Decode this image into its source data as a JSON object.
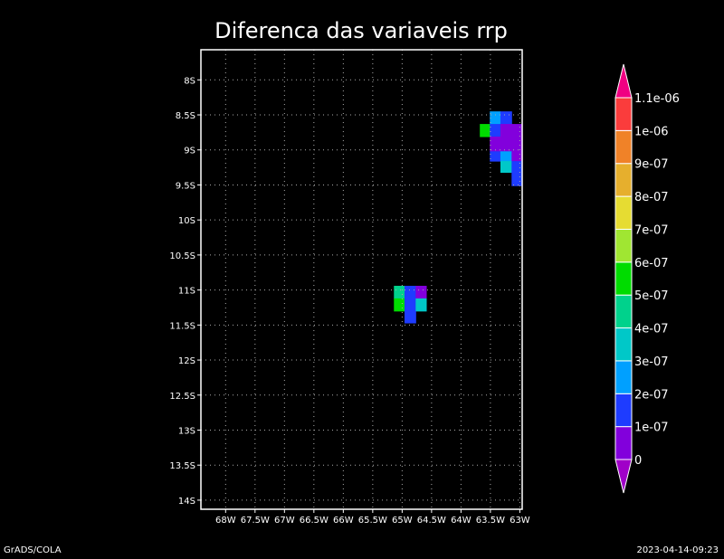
{
  "chart_data": {
    "type": "heatmap",
    "title": "Diferenca das variaveis rrp",
    "xlabel": "",
    "ylabel": "",
    "xlim": [
      -68.42,
      -62.96
    ],
    "ylim": [
      -14.13,
      -7.57
    ],
    "grid": true,
    "x_ticks": [
      -68,
      -67.5,
      -67,
      -66.5,
      -66,
      -65.5,
      -65,
      -64.5,
      -64,
      -63.5,
      -63
    ],
    "x_tick_labels": [
      "68W",
      "67.5W",
      "67W",
      "66.5W",
      "66W",
      "65.5W",
      "65W",
      "64.5W",
      "64W",
      "63.5W",
      "63W"
    ],
    "y_ticks": [
      -8,
      -8.5,
      -9,
      -9.5,
      -10,
      -10.5,
      -11,
      -11.5,
      -12,
      -12.5,
      -13,
      -13.5,
      -14
    ],
    "y_tick_labels": [
      "8S",
      "8.5S",
      "9S",
      "9.5S",
      "10S",
      "10.5S",
      "11S",
      "11.5S",
      "12S",
      "12.5S",
      "13S",
      "13.5S",
      "14S"
    ],
    "cells_note_units": "value",
    "cells": [
      [
        -63.68,
        -63.51,
        -8.63,
        -8.81,
        5.5e-07
      ],
      [
        -63.51,
        -63.33,
        -8.45,
        -8.63,
        2.5e-07
      ],
      [
        -63.33,
        -63.14,
        -8.45,
        -8.63,
        1.5e-07
      ],
      [
        -63.51,
        -63.33,
        -8.63,
        -8.81,
        1.5e-07
      ],
      [
        -63.33,
        -63.14,
        -8.63,
        -8.81,
        5e-08
      ],
      [
        -63.14,
        -62.96,
        -8.63,
        -8.81,
        5e-08
      ],
      [
        -63.51,
        -63.33,
        -8.81,
        -9.02,
        5e-08
      ],
      [
        -63.33,
        -63.14,
        -8.81,
        -9.02,
        5e-08
      ],
      [
        -63.14,
        -62.96,
        -8.81,
        -9.02,
        5e-08
      ],
      [
        -63.51,
        -63.33,
        -9.02,
        -9.16,
        1.5e-07
      ],
      [
        -63.33,
        -63.14,
        -9.02,
        -9.16,
        2.5e-07
      ],
      [
        -63.14,
        -62.96,
        -9.02,
        -9.16,
        5e-08
      ],
      [
        -63.33,
        -63.14,
        -9.16,
        -9.32,
        3.5e-07
      ],
      [
        -63.14,
        -62.96,
        -9.16,
        -9.32,
        1.5e-07
      ],
      [
        -63.14,
        -62.96,
        -9.32,
        -9.51,
        1e-07
      ],
      [
        -65.14,
        -64.96,
        -10.94,
        -11.12,
        4e-07
      ],
      [
        -64.96,
        -64.77,
        -10.94,
        -11.12,
        1.5e-07
      ],
      [
        -64.77,
        -64.59,
        -10.94,
        -11.12,
        5e-08
      ],
      [
        -65.14,
        -64.96,
        -11.12,
        -11.3,
        5.5e-07
      ],
      [
        -64.96,
        -64.77,
        -11.12,
        -11.3,
        1.5e-07
      ],
      [
        -64.77,
        -64.59,
        -11.12,
        -11.3,
        3e-07
      ],
      [
        -64.96,
        -64.77,
        -11.3,
        -11.47,
        1.5e-07
      ]
    ],
    "colorbar": {
      "levels": [
        0,
        1e-07,
        2e-07,
        3e-07,
        4e-07,
        5e-07,
        6e-07,
        7e-07,
        8e-07,
        9e-07,
        1e-06,
        1.1e-06
      ],
      "labels": [
        "0",
        "1e-07",
        "2e-07",
        "3e-07",
        "4e-07",
        "5e-07",
        "6e-07",
        "7e-07",
        "8e-07",
        "9e-07",
        "1e-06",
        "1.1e-06"
      ],
      "colors": [
        "#a000c8",
        "#8200dc",
        "#1e3cff",
        "#00a0ff",
        "#00c8c8",
        "#00d28c",
        "#00dc00",
        "#a0e632",
        "#e6dc32",
        "#e6af2d",
        "#f08228",
        "#fa3c3c",
        "#f00082"
      ]
    }
  },
  "footer": {
    "left": "GrADS/COLA",
    "right": "2023-04-14-09:23"
  }
}
